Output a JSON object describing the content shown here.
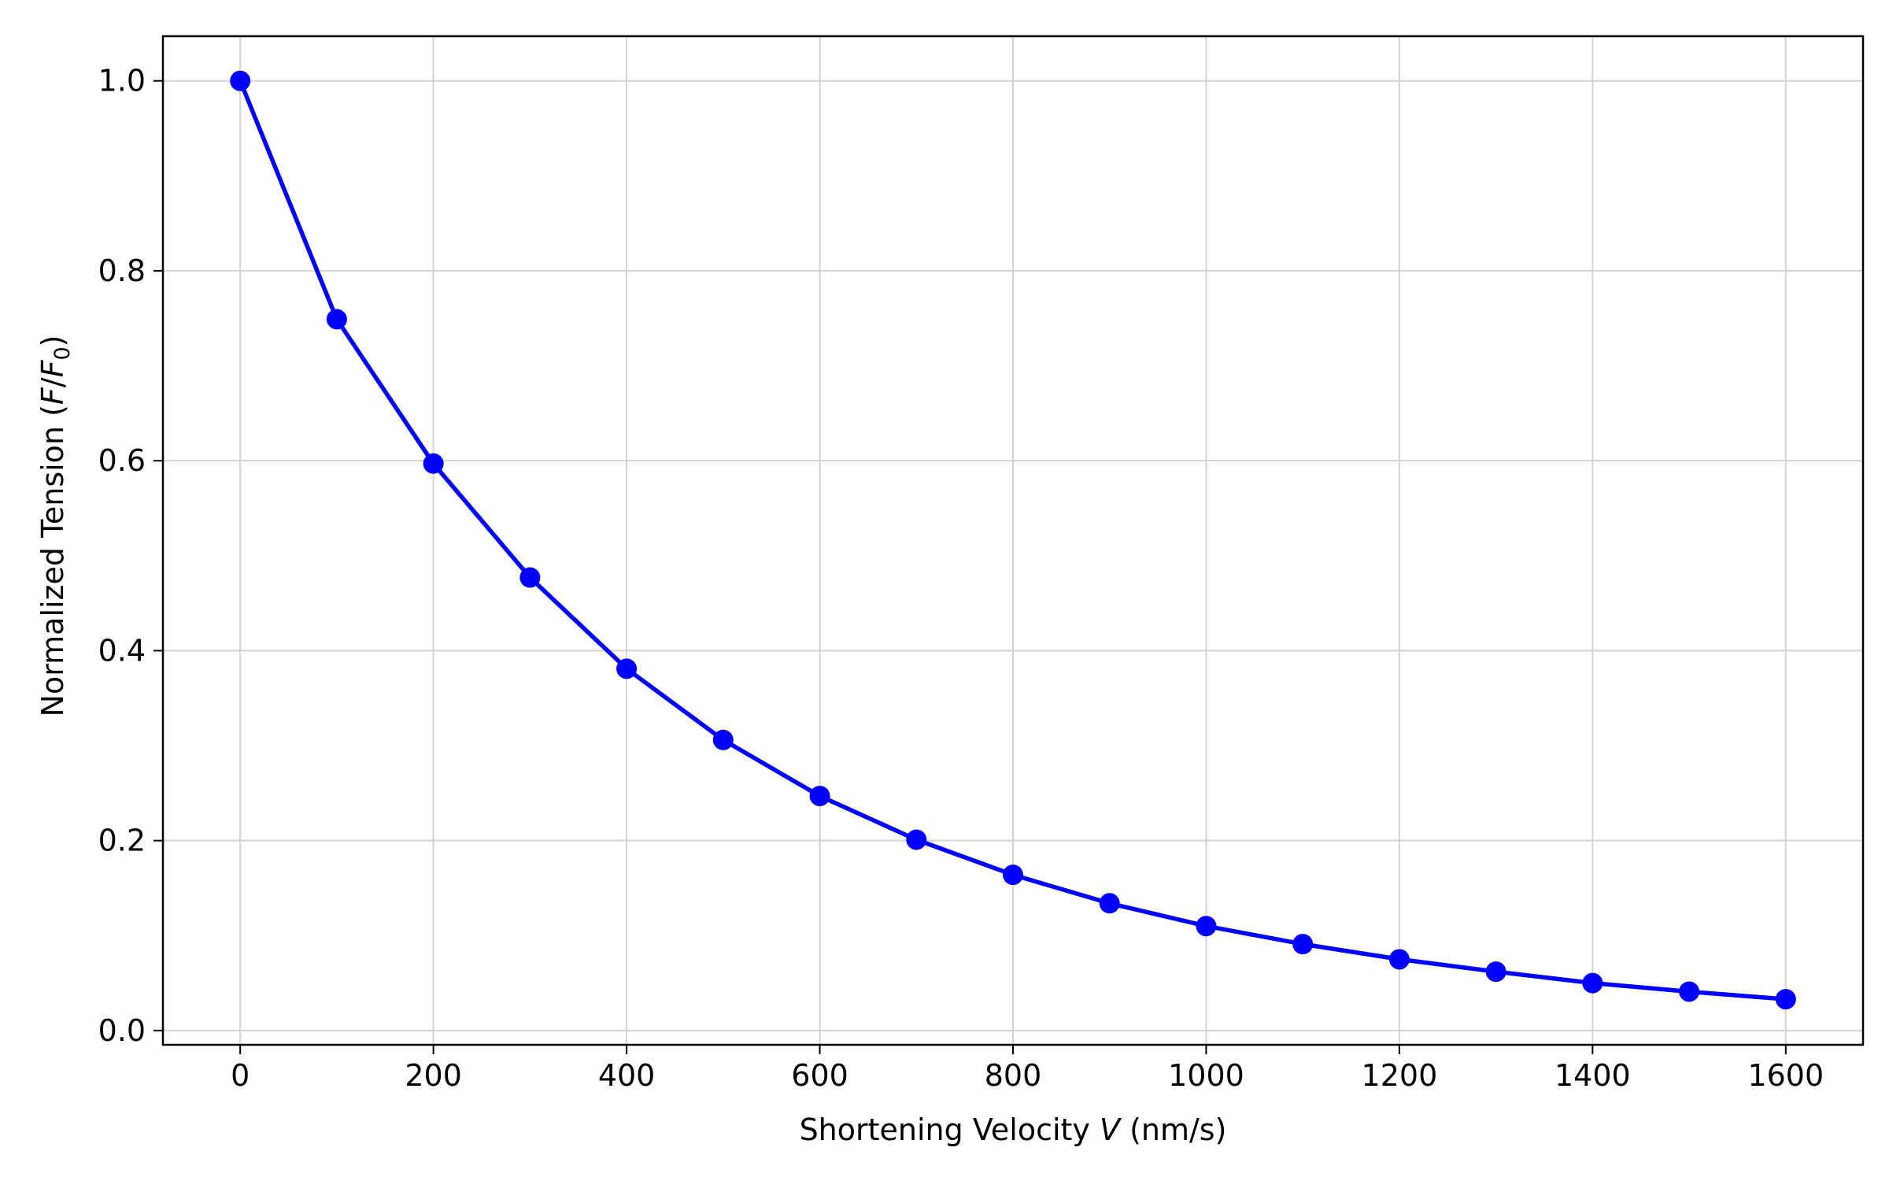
{
  "chart_data": {
    "type": "line",
    "title": "",
    "xlabel": {
      "prefix": "Shortening Velocity ",
      "var": "V",
      "suffix": " (nm/s)"
    },
    "ylabel": {
      "prefix": "Normalized Tension (",
      "var1": "F",
      "slash": "/",
      "var2": "F",
      "sub": "0",
      "suffix": ")"
    },
    "xlim": [
      -80,
      1680
    ],
    "ylim": [
      -0.015,
      1.047
    ],
    "xticks": [
      0,
      200,
      400,
      600,
      800,
      1000,
      1200,
      1400,
      1600
    ],
    "yticks": [
      0.0,
      0.2,
      0.4,
      0.6,
      0.8,
      1.0
    ],
    "xtick_labels": [
      "0",
      "200",
      "400",
      "600",
      "800",
      "1000",
      "1200",
      "1400",
      "1600"
    ],
    "ytick_labels": [
      "0.0",
      "0.2",
      "0.4",
      "0.6",
      "0.8",
      "1.0"
    ],
    "grid": true,
    "series": [
      {
        "color": "#0000ff",
        "marker": "circle",
        "x": [
          0,
          100,
          200,
          300,
          400,
          500,
          600,
          700,
          800,
          900,
          1000,
          1100,
          1200,
          1300,
          1400,
          1500,
          1600
        ],
        "y": [
          1.0,
          0.749,
          0.597,
          0.477,
          0.381,
          0.306,
          0.247,
          0.201,
          0.164,
          0.134,
          0.11,
          0.091,
          0.075,
          0.062,
          0.05,
          0.041,
          0.033
        ]
      }
    ]
  }
}
